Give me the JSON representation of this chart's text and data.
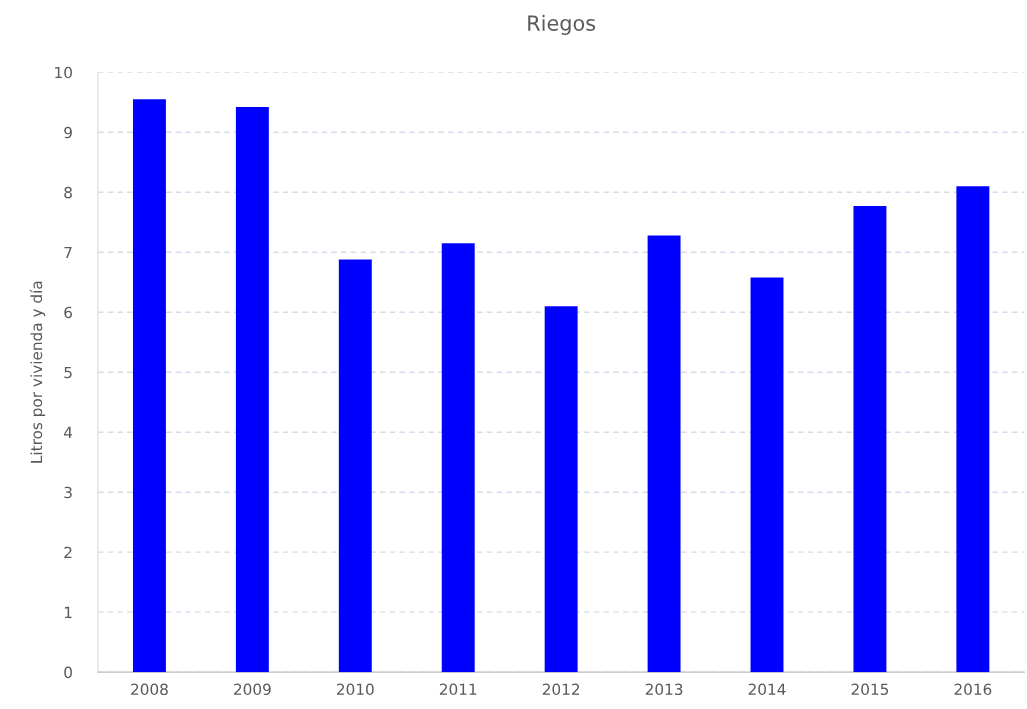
{
  "chart_data": {
    "type": "bar",
    "title": "Riegos",
    "ylabel": "Litros por vivienda y día",
    "categories": [
      "2008",
      "2009",
      "2010",
      "2011",
      "2012",
      "2013",
      "2014",
      "2015",
      "2016"
    ],
    "values": [
      9.55,
      9.42,
      6.88,
      7.15,
      6.1,
      7.28,
      6.58,
      7.77,
      8.1
    ],
    "color": "#0000ff",
    "ylim": [
      0,
      10
    ],
    "yticks": [
      0,
      1,
      2,
      3,
      4,
      5,
      6,
      7,
      8,
      9,
      10
    ],
    "grid": "y",
    "legend": false
  }
}
